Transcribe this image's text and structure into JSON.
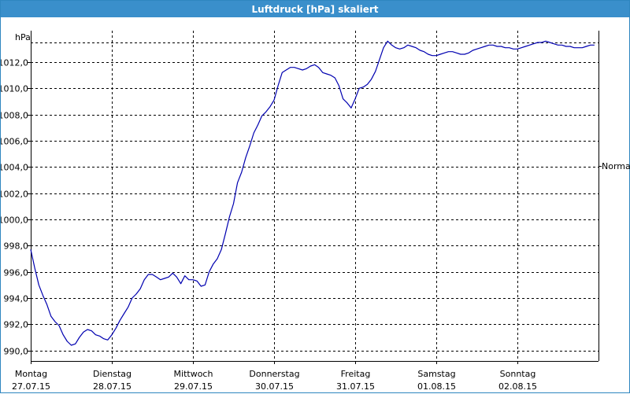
{
  "window": {
    "title": "Luftdruck [hPa] skaliert"
  },
  "colors": {
    "titlebar": "#3a8fcb",
    "series": "#0000b0",
    "grid": "#000000",
    "background": "#ffffff"
  },
  "chart_data": {
    "type": "line",
    "title": "Luftdruck [hPa] skaliert",
    "xlabel": "",
    "ylabel": "hPa",
    "ylim": [
      989.2,
      1014.4
    ],
    "yticks": [
      990,
      992,
      994,
      996,
      998,
      1000,
      1002,
      1004,
      1006,
      1008,
      1010,
      1012
    ],
    "ytick_labels": [
      "990,0",
      "992,0",
      "994,0",
      "996,0",
      "998,0",
      "1000,0",
      "1002,0",
      "1004,0",
      "1006,0",
      "1008,0",
      "1010,0",
      "1012,0"
    ],
    "xlim": [
      0,
      7
    ],
    "xticks": [
      {
        "pos": 0,
        "day": "Montag",
        "date": "27.07.15"
      },
      {
        "pos": 1,
        "day": "Dienstag",
        "date": "28.07.15"
      },
      {
        "pos": 2,
        "day": "Mittwoch",
        "date": "29.07.15"
      },
      {
        "pos": 3,
        "day": "Donnerstag",
        "date": "30.07.15"
      },
      {
        "pos": 4,
        "day": "Freitag",
        "date": "31.07.15"
      },
      {
        "pos": 5,
        "day": "Samstag",
        "date": "01.08.15"
      },
      {
        "pos": 6,
        "day": "Sonntag",
        "date": "02.08.15"
      }
    ],
    "reference_label": "Normal",
    "grid": true,
    "series": [
      {
        "x": [
          0.0,
          0.05,
          0.1,
          0.15,
          0.2,
          0.25,
          0.3,
          0.35,
          0.4,
          0.45,
          0.5,
          0.55,
          0.6,
          0.65,
          0.7,
          0.75,
          0.8,
          0.85,
          0.9,
          0.95,
          1.0,
          1.05,
          1.1,
          1.15,
          1.2,
          1.25,
          1.3,
          1.35,
          1.4,
          1.45,
          1.5,
          1.55,
          1.6,
          1.65,
          1.7,
          1.75,
          1.8,
          1.85,
          1.9,
          1.95,
          2.0,
          2.05,
          2.1,
          2.15,
          2.2,
          2.25,
          2.3,
          2.35,
          2.4,
          2.45,
          2.5,
          2.55,
          2.6,
          2.65,
          2.7,
          2.75,
          2.8,
          2.85,
          2.9,
          2.95,
          3.0,
          3.05,
          3.1,
          3.15,
          3.2,
          3.25,
          3.3,
          3.35,
          3.4,
          3.45,
          3.5,
          3.55,
          3.6,
          3.65,
          3.7,
          3.75,
          3.8,
          3.85,
          3.9,
          3.95,
          4.0,
          4.05,
          4.1,
          4.15,
          4.2,
          4.25,
          4.3,
          4.35,
          4.4,
          4.45,
          4.5,
          4.55,
          4.6,
          4.65,
          4.7,
          4.75,
          4.8,
          4.85,
          4.9,
          4.95,
          5.0,
          5.05,
          5.1,
          5.15,
          5.2,
          5.25,
          5.3,
          5.35,
          5.4,
          5.45,
          5.5,
          5.55,
          5.6,
          5.65,
          5.7,
          5.75,
          5.8,
          5.85,
          5.9,
          5.95,
          6.0,
          6.05,
          6.1,
          6.15,
          6.2,
          6.25,
          6.3,
          6.35,
          6.4,
          6.45,
          6.5,
          6.55,
          6.6,
          6.65,
          6.7,
          6.75,
          6.8,
          6.85,
          6.9,
          6.95
        ],
        "values": [
          997.7,
          996.3,
          995.0,
          994.2,
          993.5,
          992.6,
          992.2,
          991.9,
          991.2,
          990.7,
          990.4,
          990.5,
          991.0,
          991.4,
          991.6,
          991.5,
          991.2,
          991.1,
          990.9,
          990.8,
          991.2,
          991.7,
          992.3,
          992.8,
          993.3,
          994.0,
          994.3,
          994.7,
          995.4,
          995.8,
          995.8,
          995.6,
          995.4,
          995.5,
          995.6,
          995.9,
          995.6,
          995.1,
          995.7,
          995.4,
          995.4,
          995.3,
          994.9,
          995.0,
          996.0,
          996.6,
          997.0,
          997.7,
          998.9,
          1000.2,
          1001.2,
          1002.8,
          1003.6,
          1004.7,
          1005.6,
          1006.6,
          1007.2,
          1007.9,
          1008.2,
          1008.6,
          1009.1,
          1010.2,
          1011.2,
          1011.4,
          1011.6,
          1011.6,
          1011.5,
          1011.4,
          1011.5,
          1011.7,
          1011.8,
          1011.6,
          1011.2,
          1011.1,
          1011.0,
          1010.8,
          1010.2,
          1009.2,
          1008.9,
          1008.5,
          1009.2,
          1010.0,
          1010.1,
          1010.3,
          1010.7,
          1011.3,
          1012.2,
          1013.1,
          1013.6,
          1013.3,
          1013.1,
          1013.0,
          1013.1,
          1013.3,
          1013.2,
          1013.1,
          1012.9,
          1012.8,
          1012.6,
          1012.5,
          1012.5,
          1012.6,
          1012.7,
          1012.8,
          1012.8,
          1012.7,
          1012.6,
          1012.6,
          1012.7,
          1012.9,
          1013.0,
          1013.1,
          1013.2,
          1013.3,
          1013.3,
          1013.2,
          1013.2,
          1013.1,
          1013.1,
          1013.0,
          1013.0,
          1013.1,
          1013.2,
          1013.3,
          1013.4,
          1013.5,
          1013.5,
          1013.6,
          1013.5,
          1013.4,
          1013.3,
          1013.3,
          1013.2,
          1013.2,
          1013.1,
          1013.1,
          1013.1,
          1013.2,
          1013.3,
          1013.3
        ]
      }
    ]
  }
}
